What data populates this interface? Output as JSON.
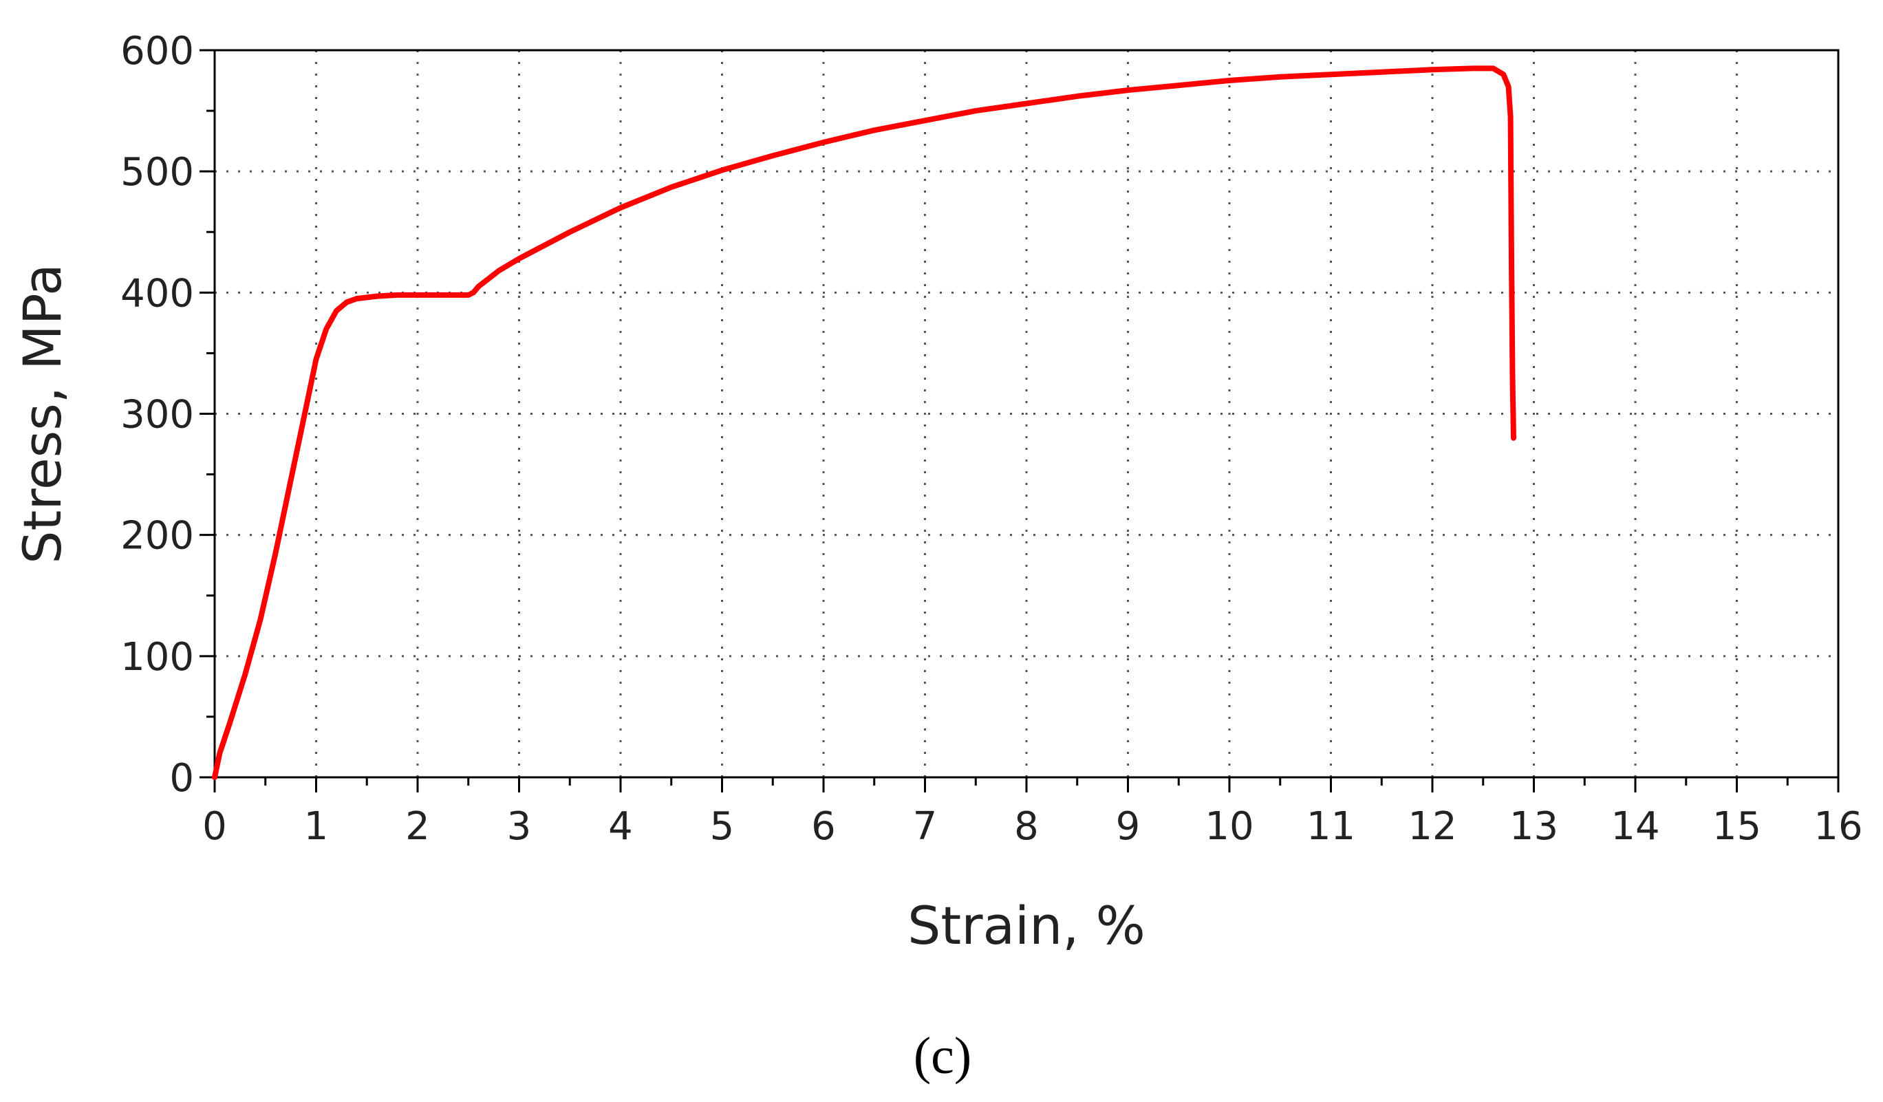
{
  "chart_data": {
    "type": "line",
    "xlabel": "Strain, %",
    "ylabel": "Stress, MPa",
    "xlim": [
      0,
      16
    ],
    "ylim": [
      0,
      600
    ],
    "x_ticks": [
      "0",
      "1",
      "2",
      "3",
      "4",
      "5",
      "6",
      "7",
      "8",
      "9",
      "10",
      "11",
      "12",
      "13",
      "14",
      "15",
      "16"
    ],
    "y_ticks": [
      "0",
      "100",
      "200",
      "300",
      "400",
      "500",
      "600"
    ],
    "grid": true,
    "grid_style": "dotted",
    "line_color": "#ff0000",
    "series": [
      {
        "x": [
          0,
          0.05,
          0.15,
          0.3,
          0.45,
          0.6,
          0.75,
          0.9,
          1.0,
          1.1,
          1.2,
          1.3,
          1.4,
          1.6,
          1.8,
          2.0,
          2.2,
          2.4,
          2.5,
          2.55,
          2.6,
          2.8,
          3.0,
          3.5,
          4.0,
          4.5,
          5.0,
          5.5,
          6.0,
          6.5,
          7.0,
          7.5,
          8.0,
          8.5,
          9.0,
          9.5,
          10.0,
          10.5,
          11.0,
          11.5,
          12.0,
          12.4,
          12.6,
          12.7,
          12.75,
          12.77,
          12.78,
          12.79,
          12.8
        ],
        "y": [
          0,
          20,
          45,
          85,
          130,
          185,
          245,
          305,
          345,
          370,
          385,
          392,
          395,
          397,
          398,
          398,
          398,
          398,
          398,
          400,
          405,
          418,
          428,
          450,
          470,
          487,
          501,
          513,
          524,
          534,
          542,
          550,
          556,
          562,
          567,
          571,
          575,
          578,
          580,
          582,
          584,
          585,
          585,
          580,
          570,
          545,
          420,
          330,
          280
        ]
      }
    ]
  },
  "figure": {
    "panel_label": "(c)"
  }
}
